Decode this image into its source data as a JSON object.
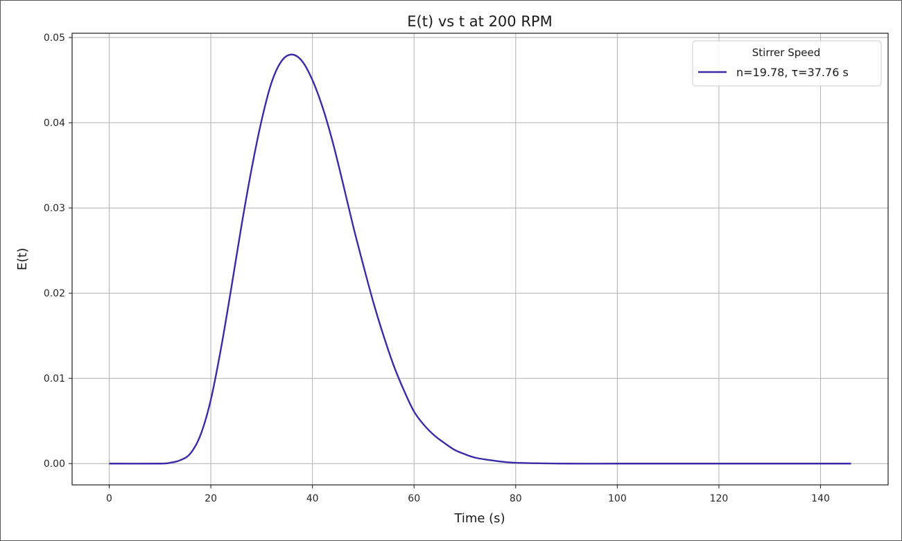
{
  "chart_data": {
    "type": "line",
    "title": "E(t) vs t at 200 RPM",
    "xlabel": "Time (s)",
    "ylabel": "E(t)",
    "xlim": [
      -7.3,
      153.3
    ],
    "ylim": [
      -0.0025,
      0.0505
    ],
    "xticks": [
      0,
      20,
      40,
      60,
      80,
      100,
      120,
      140
    ],
    "xtick_labels": [
      "0",
      "20",
      "40",
      "60",
      "80",
      "100",
      "120",
      "140"
    ],
    "yticks": [
      0.0,
      0.01,
      0.02,
      0.03,
      0.04,
      0.05
    ],
    "ytick_labels": [
      "0.00",
      "0.01",
      "0.02",
      "0.03",
      "0.04",
      "0.05"
    ],
    "grid": true,
    "legend": {
      "title": "Stirrer Speed",
      "placement": "top-right"
    },
    "series": [
      {
        "name": "n=19.78, τ=37.76 s",
        "color": "#3a2aa8",
        "x": [
          0,
          10,
          12,
          14,
          16,
          18,
          20,
          22,
          24,
          26,
          28,
          30,
          32,
          34,
          36,
          38,
          40,
          42,
          44,
          46,
          48,
          50,
          52,
          54,
          56,
          58,
          60,
          62,
          64,
          66,
          68,
          70,
          72,
          75,
          80,
          90,
          100,
          110,
          120,
          130,
          140,
          146
        ],
        "y": [
          0.0,
          0.0,
          0.0001,
          0.0004,
          0.0012,
          0.0034,
          0.0075,
          0.0135,
          0.0205,
          0.0278,
          0.0345,
          0.0403,
          0.0448,
          0.0473,
          0.048,
          0.0472,
          0.045,
          0.0418,
          0.0377,
          0.0329,
          0.0279,
          0.0233,
          0.0189,
          0.015,
          0.0115,
          0.0086,
          0.0061,
          0.0045,
          0.0033,
          0.0024,
          0.0016,
          0.0011,
          0.0007,
          0.0004,
          0.0001,
          0.0,
          0.0,
          0.0,
          0.0,
          0.0,
          0.0,
          0.0
        ]
      }
    ]
  }
}
